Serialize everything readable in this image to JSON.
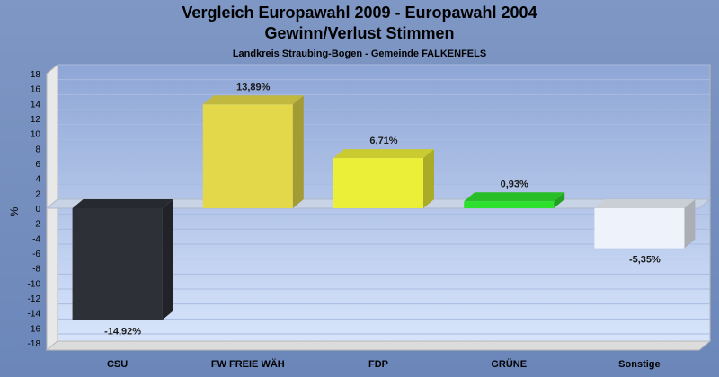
{
  "chart_data": {
    "type": "bar",
    "title": "Vergleich Europawahl 2009 - Europawahl 2004",
    "subtitle": "Gewinn/Verlust Stimmen",
    "subsubtitle": "Landkreis Straubing-Bogen - Gemeinde FALKENFELS",
    "ylabel": "%",
    "xlabel": "",
    "ylim": [
      -18,
      18
    ],
    "yticks": [
      "18",
      "16",
      "14",
      "12",
      "10",
      "8",
      "6",
      "4",
      "2",
      "0",
      "-2",
      "-4",
      "-6",
      "-8",
      "-10",
      "-12",
      "-14",
      "-16",
      "-18"
    ],
    "categories": [
      "CSU",
      "FW FREIE WÄH",
      "FDP",
      "GRÜNE",
      "Sonstige"
    ],
    "values": [
      -14.92,
      13.89,
      6.71,
      0.93,
      -5.35
    ],
    "value_labels": [
      "-14,92%",
      "13,89%",
      "6,71%",
      "0,93%",
      "-5,35%"
    ],
    "colors": [
      "#2e3038",
      "#e2d84a",
      "#ecef38",
      "#2ee02e",
      "#eef2fa"
    ],
    "grid": true,
    "legend": "none"
  }
}
